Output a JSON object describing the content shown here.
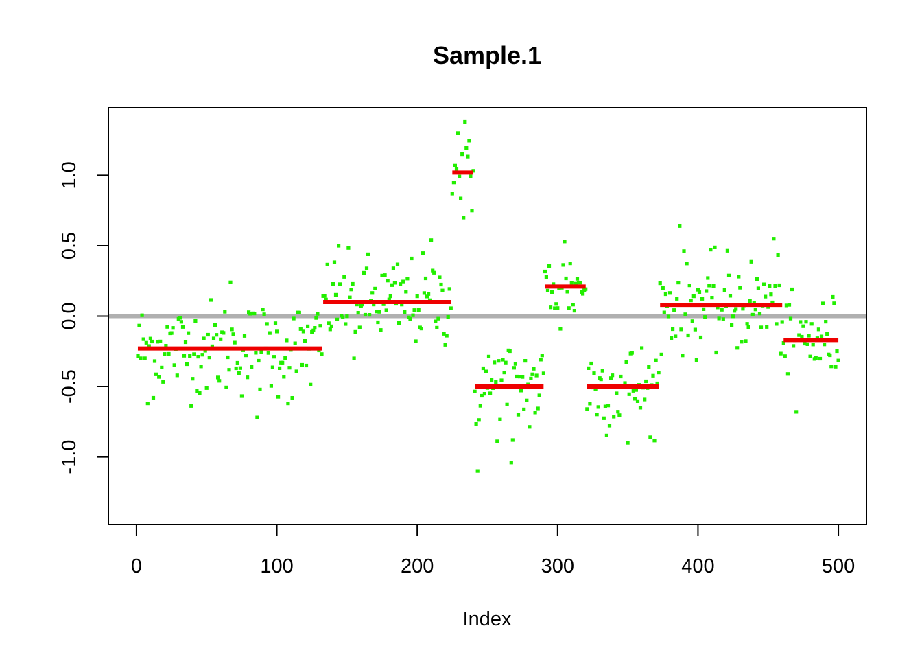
{
  "chart_data": {
    "type": "scatter",
    "title": "Sample.1",
    "xlabel": "Index",
    "ylabel": "",
    "xlim": [
      -20,
      520
    ],
    "ylim": [
      -1.48,
      1.48
    ],
    "x_ticks": [
      0,
      100,
      200,
      300,
      400,
      500
    ],
    "x_tick_labels": [
      "0",
      "100",
      "200",
      "300",
      "400",
      "500"
    ],
    "y_ticks": [
      -1.0,
      -0.5,
      0.0,
      0.5,
      1.0
    ],
    "y_tick_labels": [
      "-1.0",
      "-0.5",
      "0.0",
      "0.5",
      "1.0"
    ],
    "grid": false,
    "legend": "none",
    "colors": {
      "points": "#22ee00",
      "segments": "#ee0000",
      "reference": "#b0b0b0",
      "frame": "#000000"
    },
    "reference_line": {
      "y": 0.0
    },
    "segments": [
      {
        "x_start": 1,
        "x_end": 132,
        "mean": -0.23,
        "n": 132,
        "spread": 0.17,
        "outliers": [
          [
            8,
            -0.62
          ],
          [
            86,
            -0.72
          ],
          [
            108,
            -0.62
          ],
          [
            67,
            0.24
          ]
        ]
      },
      {
        "x_start": 133,
        "x_end": 224,
        "mean": 0.1,
        "n": 92,
        "spread": 0.16,
        "outliers": [
          [
            144,
            0.5
          ],
          [
            210,
            0.54
          ],
          [
            155,
            -0.3
          ]
        ]
      },
      {
        "x_start": 225,
        "x_end": 240,
        "mean": 1.02,
        "n": 16,
        "spread": 0.12,
        "outliers": [
          [
            234,
            1.38
          ],
          [
            229,
            1.3
          ],
          [
            233,
            0.7
          ],
          [
            239,
            0.75
          ]
        ]
      },
      {
        "x_start": 241,
        "x_end": 290,
        "mean": -0.5,
        "n": 50,
        "spread": 0.17,
        "outliers": [
          [
            243,
            -1.1
          ],
          [
            267,
            -1.04
          ],
          [
            268,
            -0.88
          ]
        ]
      },
      {
        "x_start": 291,
        "x_end": 320,
        "mean": 0.21,
        "n": 30,
        "spread": 0.14,
        "outliers": [
          [
            305,
            0.53
          ],
          [
            302,
            -0.09
          ]
        ]
      },
      {
        "x_start": 321,
        "x_end": 372,
        "mean": -0.5,
        "n": 52,
        "spread": 0.16,
        "outliers": [
          [
            350,
            -0.9
          ],
          [
            366,
            -0.86
          ]
        ]
      },
      {
        "x_start": 373,
        "x_end": 460,
        "mean": 0.08,
        "n": 88,
        "spread": 0.17,
        "outliers": [
          [
            387,
            0.64
          ],
          [
            454,
            0.55
          ]
        ]
      },
      {
        "x_start": 461,
        "x_end": 500,
        "mean": -0.17,
        "n": 40,
        "spread": 0.15,
        "outliers": [
          [
            470,
            -0.68
          ]
        ]
      }
    ]
  }
}
